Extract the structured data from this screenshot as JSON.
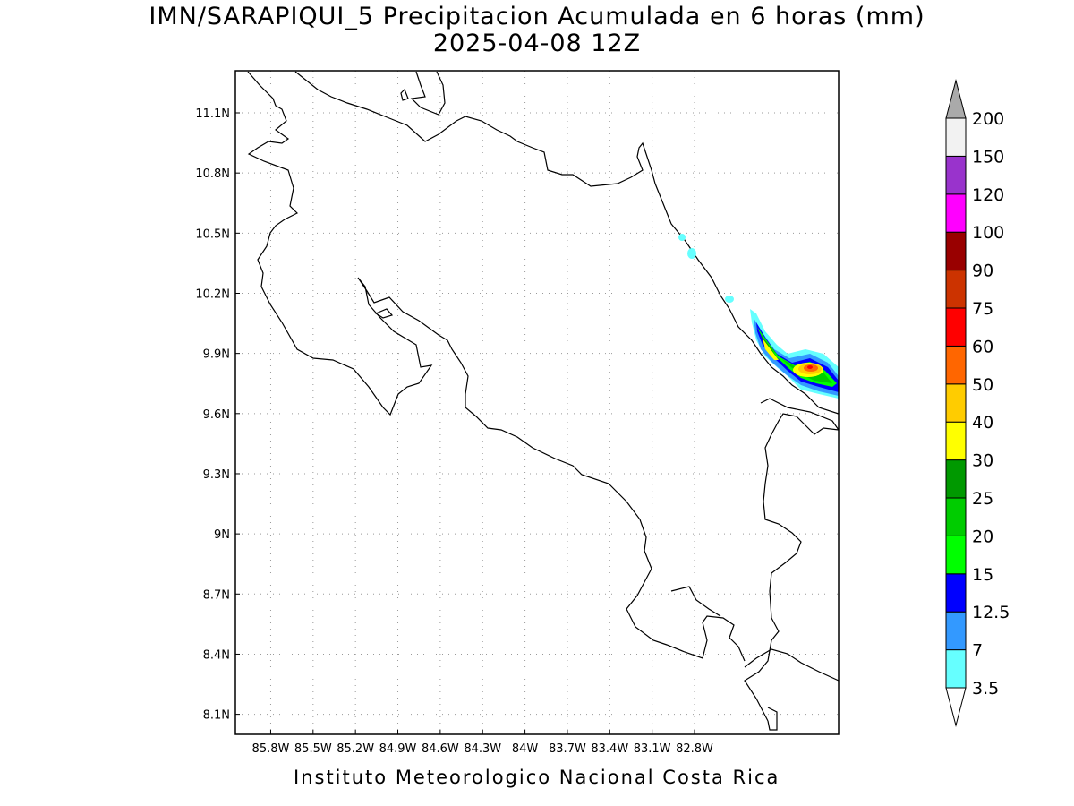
{
  "title": "IMN/SARAPIQUI_5 Precipitacion Acumulada en 6 horas (mm)",
  "subtitle": "2025-04-08 12Z",
  "credit": "Instituto Meteorologico Nacional Costa Rica",
  "map": {
    "lon_range": [
      -86.05,
      -81.78
    ],
    "lat_range": [
      8.0,
      11.31
    ],
    "lon_ticks": [
      {
        "v": -85.8,
        "label": "85.8W"
      },
      {
        "v": -85.5,
        "label": "85.5W"
      },
      {
        "v": -85.2,
        "label": "85.2W"
      },
      {
        "v": -84.9,
        "label": "84.9W"
      },
      {
        "v": -84.6,
        "label": "84.6W"
      },
      {
        "v": -84.3,
        "label": "84.3W"
      },
      {
        "v": -84.0,
        "label": "84W"
      },
      {
        "v": -83.7,
        "label": "83.7W"
      },
      {
        "v": -83.4,
        "label": "83.4W"
      },
      {
        "v": -83.1,
        "label": "83.1W"
      },
      {
        "v": -82.8,
        "label": "82.8W"
      }
    ],
    "lat_ticks": [
      {
        "v": 11.1,
        "label": "11.1N"
      },
      {
        "v": 10.8,
        "label": "10.8N"
      },
      {
        "v": 10.5,
        "label": "10.5N"
      },
      {
        "v": 10.2,
        "label": "10.2N"
      },
      {
        "v": 9.9,
        "label": "9.9N"
      },
      {
        "v": 9.6,
        "label": "9.6N"
      },
      {
        "v": 9.3,
        "label": "9.3N"
      },
      {
        "v": 9.0,
        "label": "9N"
      },
      {
        "v": 8.7,
        "label": "8.7N"
      },
      {
        "v": 8.4,
        "label": "8.4N"
      },
      {
        "v": 8.1,
        "label": "8.1N"
      }
    ],
    "grid": true
  },
  "colorbar": {
    "labels": [
      "3.5",
      "7",
      "12.5",
      "15",
      "20",
      "25",
      "30",
      "40",
      "50",
      "60",
      "75",
      "90",
      "100",
      "120",
      "150",
      "200"
    ],
    "colors": [
      "#66ffff",
      "#3399ff",
      "#0000ff",
      "#00ff00",
      "#00cc00",
      "#009900",
      "#ffff00",
      "#ffcc00",
      "#ff6600",
      "#ff0000",
      "#cc3300",
      "#990000",
      "#ff00ff",
      "#9933cc",
      "#f2f2f2"
    ],
    "below_color": "#ffffff",
    "above_color": "#aaaaaa"
  }
}
